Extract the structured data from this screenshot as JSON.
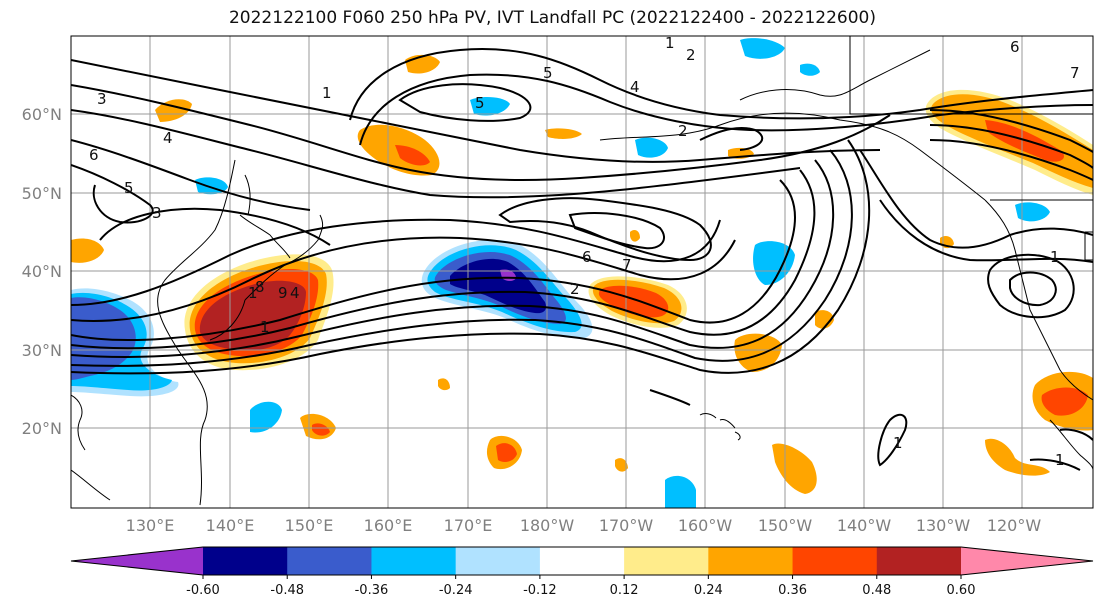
{
  "title": "2022122100 F060 250 hPa PV, IVT Landfall PC (2022122400 - 2022122600)",
  "lat_labels": [
    "60°N",
    "50°N",
    "40°N",
    "30°N",
    "20°N"
  ],
  "lon_labels": [
    "130°E",
    "140°E",
    "150°E",
    "160°E",
    "170°E",
    "180°W",
    "170°W",
    "160°W",
    "150°W",
    "140°W",
    "130°W",
    "120°W"
  ],
  "colorbar": {
    "colors": [
      "#9932cc",
      "#00008b",
      "#3a5ccc",
      "#00bfff",
      "#b0e2ff",
      "#ffffff",
      "#ffec8b",
      "#ffa500",
      "#ff4500",
      "#b22222",
      "#ff88aa"
    ],
    "tick_labels": [
      "-0.60",
      "-0.48",
      "-0.36",
      "-0.24",
      "-0.12",
      "0.12",
      "0.24",
      "0.36",
      "0.48",
      "0.60"
    ]
  },
  "contour_labels": [
    "1",
    "2",
    "3",
    "4",
    "5",
    "6",
    "7",
    "8",
    "9",
    "1",
    "2",
    "4",
    "5",
    "4",
    "6",
    "3",
    "5",
    "6",
    "7",
    "1",
    "1",
    "1",
    "1",
    "2",
    "1"
  ]
}
